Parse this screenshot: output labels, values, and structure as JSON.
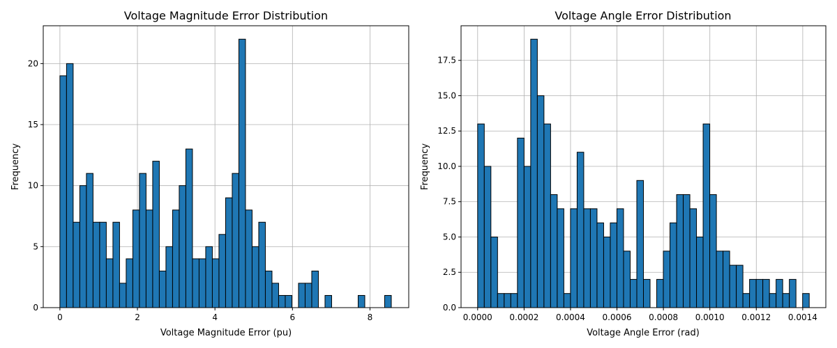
{
  "chart_data": [
    {
      "type": "bar",
      "title": "Voltage Magnitude Error Distribution",
      "xlabel": "Voltage Magnitude Error (pu)",
      "ylabel": "Frequency",
      "xlim": [
        -0.43,
        9.0
      ],
      "ylim": [
        0,
        23.1
      ],
      "xticks": [
        0,
        2,
        4,
        6,
        8
      ],
      "xtick_labels": [
        "0",
        "2",
        "4",
        "6",
        "8"
      ],
      "yticks": [
        0,
        5,
        10,
        15,
        20
      ],
      "ytick_labels": [
        "0",
        "5",
        "10",
        "15",
        "20"
      ],
      "grid": true,
      "bin_start": 0.0,
      "bin_width": 0.171,
      "values": [
        19,
        20,
        7,
        10,
        11,
        7,
        7,
        4,
        7,
        2,
        4,
        8,
        11,
        8,
        12,
        3,
        5,
        8,
        10,
        13,
        4,
        4,
        5,
        4,
        6,
        9,
        11,
        22,
        8,
        5,
        7,
        3,
        2,
        1,
        1,
        0,
        2,
        2,
        3,
        0,
        1,
        0,
        0,
        0,
        0,
        1,
        0,
        0,
        0,
        1
      ],
      "bar_color": "#1f77b4",
      "edge_color": "#000000"
    },
    {
      "type": "bar",
      "title": "Voltage Angle Error Distribution",
      "xlabel": "Voltage Angle Error (rad)",
      "ylabel": "Frequency",
      "xlim": [
        -7.15e-05,
        0.0014995
      ],
      "ylim": [
        0,
        19.95
      ],
      "xticks": [
        0,
        0.0002,
        0.0004,
        0.0006,
        0.0008,
        0.001,
        0.0012,
        0.0014
      ],
      "xtick_labels": [
        "0.0000",
        "0.0002",
        "0.0004",
        "0.0006",
        "0.0008",
        "0.0010",
        "0.0012",
        "0.0014"
      ],
      "yticks": [
        0,
        2.5,
        5,
        7.5,
        10,
        12.5,
        15,
        17.5
      ],
      "ytick_labels": [
        "0.0",
        "2.5",
        "5.0",
        "7.5",
        "10.0",
        "12.5",
        "15.0",
        "17.5"
      ],
      "grid": true,
      "bin_start": 0.0,
      "bin_width": 2.856e-05,
      "values": [
        13,
        10,
        5,
        1,
        1,
        1,
        12,
        10,
        19,
        15,
        13,
        8,
        7,
        1,
        7,
        11,
        7,
        7,
        6,
        5,
        6,
        7,
        4,
        2,
        9,
        2,
        0,
        2,
        4,
        6,
        8,
        8,
        7,
        5,
        13,
        8,
        4,
        4,
        3,
        3,
        1,
        2,
        2,
        2,
        1,
        2,
        1,
        2,
        0,
        1
      ],
      "bar_color": "#1f77b4",
      "edge_color": "#000000"
    }
  ]
}
